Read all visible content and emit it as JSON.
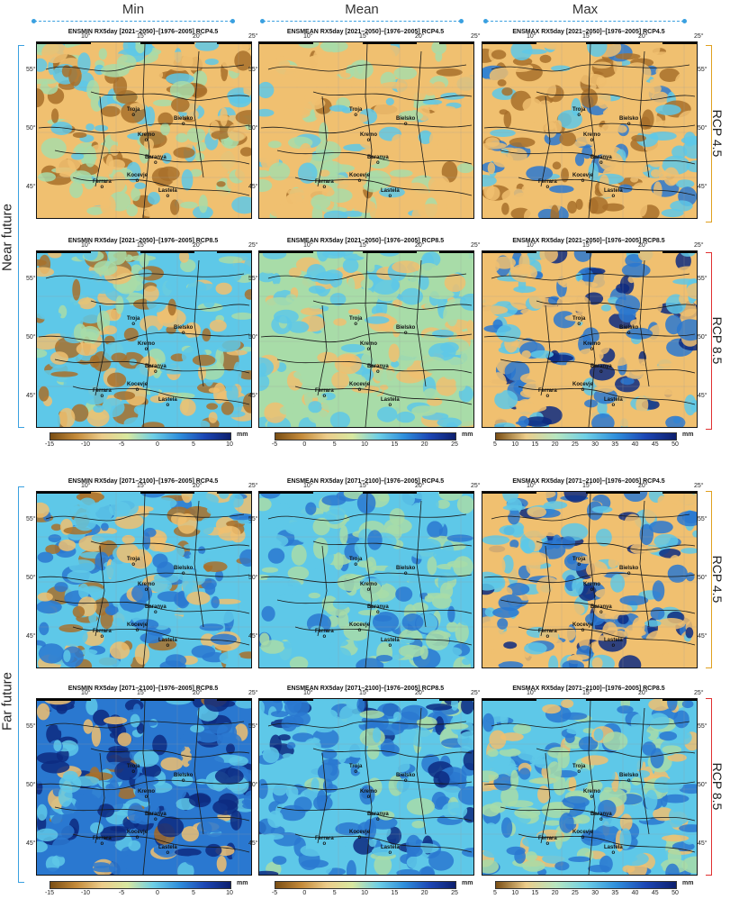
{
  "columns": [
    "Min",
    "Mean",
    "Max"
  ],
  "periods": [
    "Near future",
    "Far future"
  ],
  "scenarios": [
    "RCP 4.5",
    "RCP 8.5",
    "RCP 4.5",
    "RCP 8.5"
  ],
  "panel_titles": [
    [
      "ENSMIN RX5day [2021–2050]–[1976–2005] RCP4.5",
      "ENSMEAN RX5day [2021–2050]–[1976–2005] RCP4.5",
      "ENSMAX RX5day [2021–2050]–[1976–2005] RCP4.5"
    ],
    [
      "ENSMIN RX5day [2021–2050]–[1976–2005] RCP8.5",
      "ENSMEAN RX5day [2021–2050]–[1976–2005] RCP8.5",
      "ENSMAX RX5day [2021–2050]–[1976–2005] RCP8.5"
    ],
    [
      "ENSMIN RX5day [2071–2100]–[1976–2005] RCP4.5",
      "ENSMEAN RX5day [2071–2100]–[1976–2005] RCP4.5",
      "ENSMAX RX5day [2071–2100]–[1976–2005] RCP4.5"
    ],
    [
      "ENSMIN RX5day [2071–2100]–[1976–2005] RCP8.5",
      "ENSMEAN RX5day [2071–2100]–[1976–2005] RCP8.5",
      "ENSMAX RX5day [2071–2100]–[1976–2005] RCP8.5"
    ]
  ],
  "lon_ticks": [
    "10",
    "15",
    "20",
    "25"
  ],
  "lat_ticks": [
    "55",
    "50",
    "45"
  ],
  "cities": [
    "Troja",
    "Bielsko",
    "Kremo",
    "Baranya",
    "Kocevje",
    "Ferrara",
    "Lastela"
  ],
  "colorbars": {
    "unit": "mm",
    "min": [
      "-15",
      "-10",
      "-5",
      "0",
      "5",
      "10"
    ],
    "mean": [
      "-5",
      "0",
      "5",
      "10",
      "15",
      "20",
      "25"
    ],
    "max": [
      "5",
      "10",
      "15",
      "20",
      "25",
      "30",
      "35",
      "40",
      "45",
      "50"
    ]
  },
  "colors": {
    "dry": "#a8702a",
    "neutral": "#f0c070",
    "green": "#a8dca8",
    "cyan": "#5ec8e8",
    "blue": "#2a78d0",
    "navy": "#0d2a80",
    "frame_blue": "#3aa0e0",
    "frame_orange": "#e0a020",
    "frame_red": "#e03030"
  },
  "panel_palettes": [
    [
      "mixed_min_1",
      "mostly_neutral_mean_1",
      "neutral_max_1"
    ],
    [
      "mixed_min_2",
      "green_mean_2",
      "neutral_max_2"
    ],
    [
      "blue_min_3",
      "green_mean_3",
      "neutral_max_3"
    ],
    [
      "deep_blue_min_4",
      "blue_mean_4",
      "green_max_4"
    ]
  ]
}
